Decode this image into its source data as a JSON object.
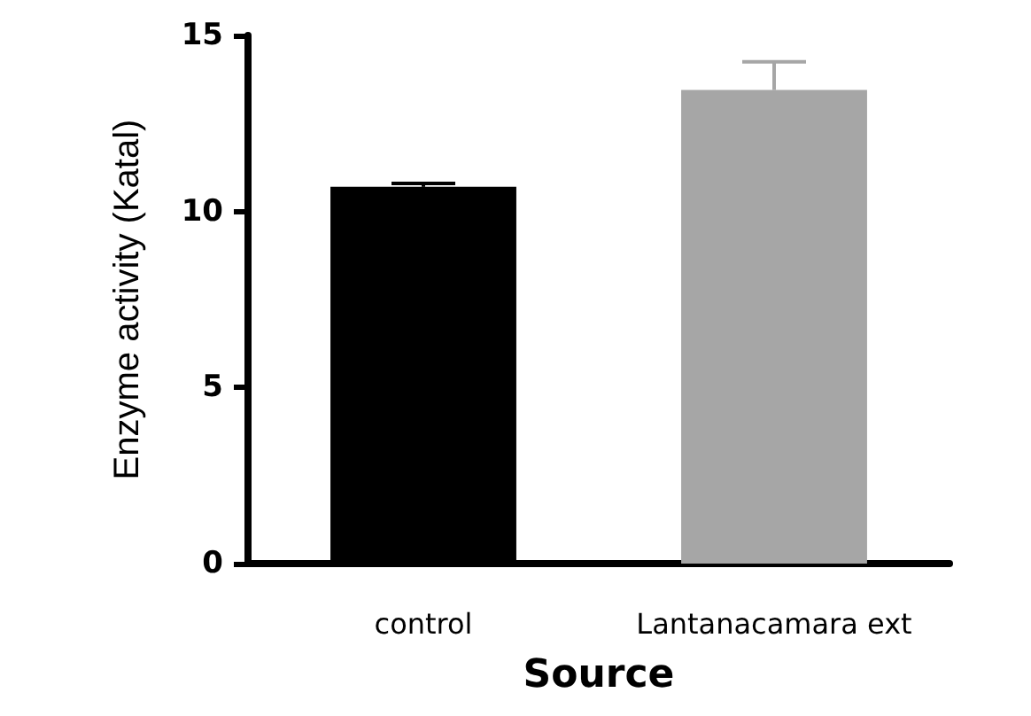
{
  "chart_data": {
    "type": "bar",
    "xlabel": "Source",
    "ylabel": "Enzyme activity (Katal)",
    "categories": [
      "control",
      "Lantanacamara ext"
    ],
    "values": [
      10.7,
      13.45
    ],
    "colors": [
      "#000000",
      "#a6a6a6"
    ],
    "errors": [
      [
        10.7,
        10.8
      ],
      [
        13.45,
        14.25
      ]
    ],
    "ylim": [
      0,
      15
    ],
    "yticks": [
      0,
      5,
      10,
      15
    ],
    "grid": false
  }
}
